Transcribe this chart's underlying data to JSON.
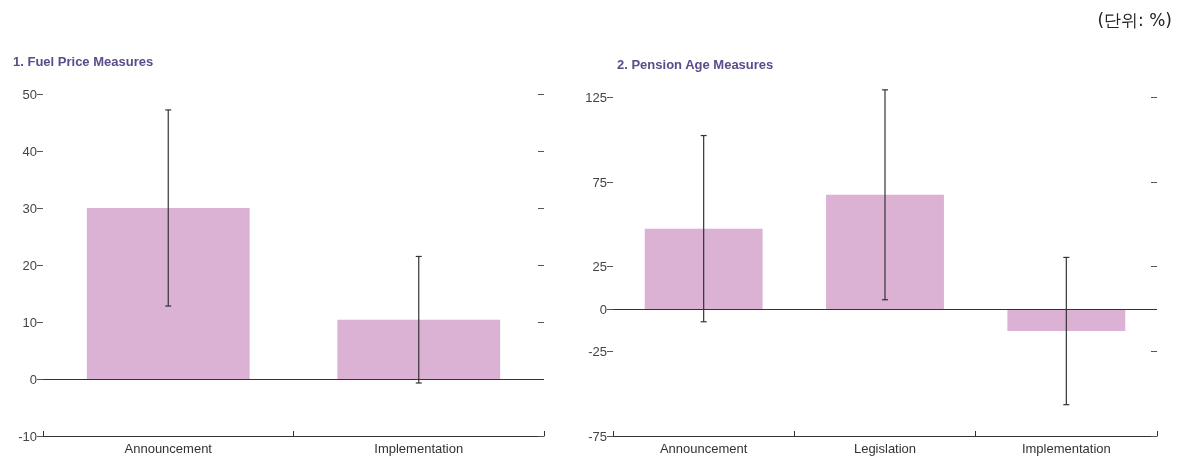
{
  "chart_data": [
    {
      "type": "bar",
      "title": "1. Fuel Price Measures",
      "categories": [
        "Announcement",
        "Implementation"
      ],
      "values": [
        30,
        10.4
      ],
      "errors": [
        17.2,
        11.1
      ],
      "color": "#dbb1d4",
      "ylim": [
        -10,
        50
      ],
      "yticks": [
        -10,
        0,
        10,
        20,
        30,
        40,
        50
      ],
      "grid": false,
      "ref_lines": [
        {
          "axis": "y",
          "value": 0,
          "color": "#333333"
        }
      ]
    },
    {
      "type": "bar",
      "title": "2. Pension Age Measures",
      "categories": [
        "Announcement",
        "Legislation",
        "Implementation"
      ],
      "values": [
        47.5,
        67.5,
        -13
      ],
      "errors": [
        55,
        62,
        43.5
      ],
      "color": "#dbb1d4",
      "ylim": [
        -75,
        130
      ],
      "yticks": [
        -75,
        -25,
        0,
        25,
        75,
        125
      ],
      "grid": false,
      "ref_lines": [
        {
          "axis": "y",
          "value": 0,
          "color": "#333333"
        }
      ],
      "annotations": [
        "(단위: %)"
      ]
    }
  ]
}
